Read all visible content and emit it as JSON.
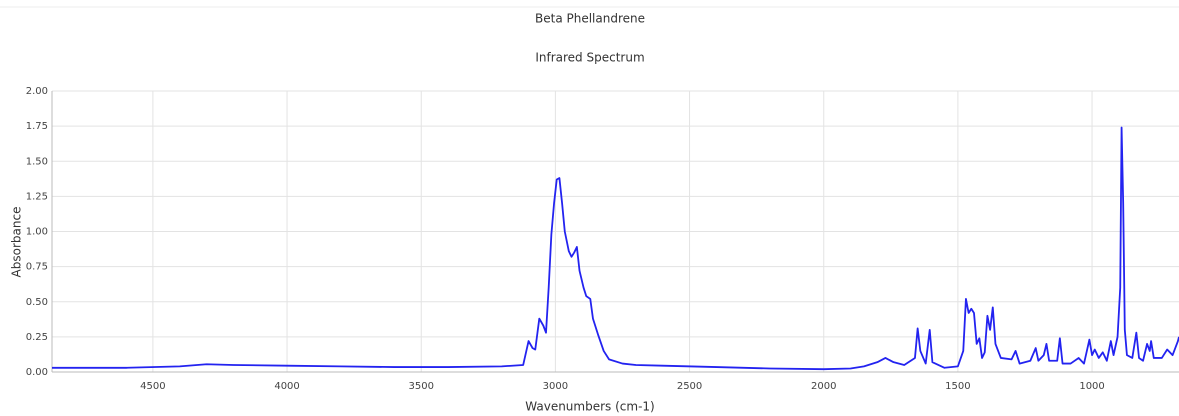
{
  "chart_data": {
    "type": "line",
    "title": "Beta Phellandrene",
    "subtitle": "Infrared Spectrum",
    "x_label": "Wavenumbers (cm-1)",
    "y_label": "Absorbance",
    "color": "#2323f0",
    "grid": true,
    "xlim": [
      4876,
      676
    ],
    "ylim": [
      0,
      2
    ],
    "xticks": [
      4500,
      4000,
      3500,
      3000,
      2500,
      2000,
      1500,
      1000
    ],
    "yticks": [
      {
        "value": 0,
        "label": "0.00"
      },
      {
        "value": 0.25,
        "label": "0.25"
      },
      {
        "value": 0.5,
        "label": "0.50"
      },
      {
        "value": 0.75,
        "label": "0.75"
      },
      {
        "value": 1,
        "label": "1.00"
      },
      {
        "value": 1.25,
        "label": "1.25"
      },
      {
        "value": 1.5,
        "label": "1.50"
      },
      {
        "value": 1.75,
        "label": "1.75"
      },
      {
        "value": 2,
        "label": "2.00"
      }
    ],
    "x": [
      4876,
      4600,
      4400,
      4300,
      4200,
      4000,
      3800,
      3600,
      3400,
      3200,
      3120,
      3100,
      3085,
      3075,
      3060,
      3045,
      3035,
      3025,
      3015,
      3005,
      2995,
      2985,
      2975,
      2965,
      2950,
      2940,
      2930,
      2920,
      2910,
      2895,
      2885,
      2870,
      2860,
      2840,
      2820,
      2800,
      2750,
      2700,
      2600,
      2400,
      2200,
      2000,
      1900,
      1850,
      1800,
      1770,
      1740,
      1700,
      1660,
      1650,
      1640,
      1620,
      1605,
      1595,
      1550,
      1500,
      1480,
      1470,
      1460,
      1450,
      1440,
      1430,
      1420,
      1410,
      1400,
      1390,
      1380,
      1370,
      1360,
      1340,
      1300,
      1285,
      1270,
      1230,
      1210,
      1200,
      1180,
      1170,
      1160,
      1130,
      1120,
      1110,
      1080,
      1050,
      1030,
      1010,
      1000,
      990,
      975,
      960,
      945,
      930,
      920,
      905,
      895,
      890,
      884,
      878,
      870,
      850,
      835,
      825,
      810,
      795,
      785,
      780,
      770,
      740,
      720,
      700,
      680,
      676
    ],
    "values": [
      0.03,
      0.03,
      0.04,
      0.055,
      0.05,
      0.045,
      0.04,
      0.035,
      0.035,
      0.04,
      0.05,
      0.22,
      0.17,
      0.16,
      0.38,
      0.33,
      0.28,
      0.6,
      0.98,
      1.2,
      1.37,
      1.38,
      1.2,
      1.0,
      0.86,
      0.82,
      0.85,
      0.89,
      0.72,
      0.6,
      0.54,
      0.52,
      0.38,
      0.26,
      0.15,
      0.09,
      0.06,
      0.05,
      0.045,
      0.035,
      0.025,
      0.02,
      0.025,
      0.04,
      0.07,
      0.1,
      0.07,
      0.05,
      0.1,
      0.31,
      0.15,
      0.06,
      0.3,
      0.07,
      0.03,
      0.04,
      0.15,
      0.52,
      0.42,
      0.45,
      0.42,
      0.2,
      0.24,
      0.1,
      0.14,
      0.4,
      0.3,
      0.46,
      0.2,
      0.1,
      0.09,
      0.15,
      0.06,
      0.08,
      0.17,
      0.08,
      0.12,
      0.2,
      0.08,
      0.08,
      0.24,
      0.06,
      0.06,
      0.1,
      0.06,
      0.23,
      0.12,
      0.16,
      0.1,
      0.14,
      0.08,
      0.22,
      0.12,
      0.25,
      0.6,
      1.74,
      1.2,
      0.3,
      0.12,
      0.1,
      0.28,
      0.1,
      0.08,
      0.2,
      0.15,
      0.22,
      0.1,
      0.1,
      0.16,
      0.12,
      0.22,
      0.25
    ]
  }
}
